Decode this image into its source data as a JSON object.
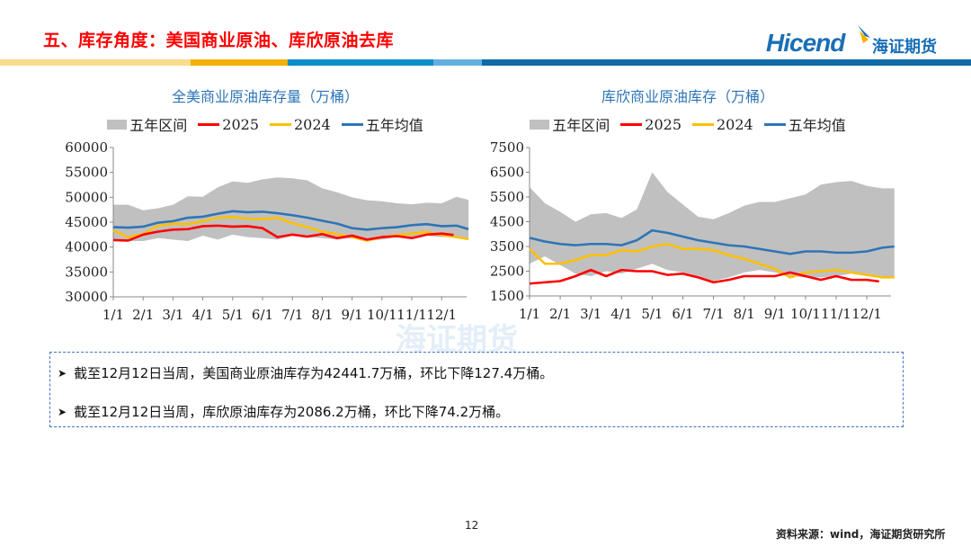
{
  "header": {
    "title": "五、库存角度：美国商业原油、库欣原油去库",
    "logo_text": "Hicend",
    "logo_cn": "海证期货"
  },
  "colors": {
    "title": "#ff0000",
    "band": "#c0c0c0",
    "series_2025": "#ff0000",
    "series_2024": "#ffc000",
    "series_avg": "#2e75b6",
    "header_bars": [
      "#fbdc8c",
      "#f5b000",
      "#0a8fcb",
      "#62b0df",
      "#0f6aa6"
    ]
  },
  "watermark": "海证期货",
  "chart_data": [
    {
      "type": "area",
      "title": "全美商业原油库存量（万桶）",
      "legend": [
        "五年区间",
        "2025",
        "2024",
        "五年均值"
      ],
      "legend_placement": "top",
      "x_unit": "month",
      "x_ticks": [
        "1/1",
        "2/1",
        "3/1",
        "4/1",
        "5/1",
        "6/1",
        "7/1",
        "8/1",
        "9/1",
        "10/1",
        "11/1",
        "12/1"
      ],
      "y_ticks": [
        30000,
        35000,
        40000,
        45000,
        50000,
        55000,
        60000
      ],
      "y_tick_labels": [
        "30000",
        "35000",
        "40000",
        "45000",
        "50000",
        "55000",
        "60000"
      ],
      "ylim": [
        30000,
        60000
      ],
      "grid": false,
      "x": [
        1,
        1.5,
        2,
        2.5,
        3,
        3.5,
        4,
        4.5,
        5,
        5.5,
        6,
        6.5,
        7,
        7.5,
        8,
        8.5,
        9,
        9.5,
        10,
        10.5,
        11,
        11.5,
        12,
        12.5,
        12.9
      ],
      "band": {
        "name": "五年区间",
        "upper": [
          48500,
          48500,
          47400,
          47800,
          48500,
          50200,
          50100,
          52000,
          53200,
          52900,
          53600,
          54000,
          53800,
          53400,
          51800,
          51000,
          50000,
          49400,
          49200,
          48800,
          48600,
          48900,
          48800,
          50100,
          49500
        ],
        "lower": [
          41500,
          41200,
          41200,
          41800,
          41500,
          41200,
          42300,
          41500,
          42500,
          42000,
          41800,
          41500,
          42300,
          42000,
          41800,
          41500,
          41800,
          41300,
          41500,
          42000,
          42000,
          42300,
          42000,
          42200,
          41500
        ]
      },
      "series": [
        {
          "name": "五年均值",
          "x": [
            1,
            1.5,
            2,
            2.5,
            3,
            3.5,
            4,
            4.5,
            5,
            5.5,
            6,
            6.5,
            7,
            7.5,
            8,
            8.5,
            9,
            9.5,
            10,
            10.5,
            11,
            11.5,
            12,
            12.5,
            12.9
          ],
          "values": [
            44000,
            43900,
            44100,
            44900,
            45200,
            45900,
            46100,
            46700,
            47200,
            47000,
            47100,
            46800,
            46400,
            45900,
            45300,
            44700,
            43800,
            43500,
            43800,
            44000,
            44400,
            44600,
            44200,
            44300,
            43600
          ]
        },
        {
          "name": "2024",
          "x": [
            1,
            1.5,
            2,
            2.5,
            3,
            3.5,
            4,
            4.5,
            5,
            5.5,
            6,
            6.5,
            7,
            7.5,
            8,
            8.5,
            9,
            9.5,
            10,
            10.5,
            11,
            11.5,
            12,
            12.5,
            12.9
          ],
          "values": [
            43300,
            42000,
            42600,
            44300,
            44700,
            44600,
            45200,
            45900,
            46000,
            45700,
            45600,
            45900,
            44800,
            44000,
            43100,
            42600,
            42000,
            41300,
            42000,
            42400,
            42700,
            43000,
            42400,
            42000,
            41600
          ]
        },
        {
          "name": "2025",
          "x": [
            1,
            1.5,
            2,
            2.5,
            3,
            3.5,
            4,
            4.5,
            5,
            5.5,
            6,
            6.5,
            7,
            7.5,
            8,
            8.5,
            9,
            9.5,
            10,
            10.5,
            11,
            11.5,
            12,
            12.4
          ],
          "values": [
            41400,
            41300,
            42500,
            43100,
            43500,
            43600,
            44200,
            44300,
            44100,
            44200,
            43800,
            42000,
            42500,
            42100,
            42600,
            41800,
            42300,
            41500,
            42000,
            42200,
            41800,
            42500,
            42700,
            42441.7
          ]
        }
      ]
    },
    {
      "type": "area",
      "title": "库欣商业原油库存（万桶）",
      "legend": [
        "五年区间",
        "2025",
        "2024",
        "五年均值"
      ],
      "legend_placement": "top",
      "x_unit": "month",
      "x_ticks": [
        "1/1",
        "2/1",
        "3/1",
        "4/1",
        "5/1",
        "6/1",
        "7/1",
        "8/1",
        "9/1",
        "10/1",
        "11/1",
        "12/1"
      ],
      "y_ticks": [
        1500,
        2500,
        3500,
        4500,
        5500,
        6500,
        7500
      ],
      "y_tick_labels": [
        "1500",
        "2500",
        "3500",
        "4500",
        "5500",
        "6500",
        "7500"
      ],
      "ylim": [
        1500,
        7500
      ],
      "grid": false,
      "x": [
        1,
        1.5,
        2,
        2.5,
        3,
        3.5,
        4,
        4.5,
        5,
        5.5,
        6,
        6.5,
        7,
        7.5,
        8,
        8.5,
        9,
        9.5,
        10,
        10.5,
        11,
        11.5,
        12,
        12.5,
        12.9
      ],
      "band": {
        "name": "五年区间",
        "upper": [
          5900,
          5250,
          4900,
          4500,
          4800,
          4850,
          4650,
          5000,
          6500,
          5700,
          5200,
          4700,
          4600,
          4850,
          5150,
          5300,
          5300,
          5450,
          5600,
          6000,
          6100,
          6150,
          5950,
          5850,
          5850
        ],
        "lower": [
          2800,
          3100,
          2750,
          2400,
          2300,
          2500,
          2400,
          2600,
          2800,
          2550,
          2450,
          2300,
          2100,
          2250,
          2450,
          2550,
          2450,
          2300,
          2250,
          2250,
          2300,
          2400,
          2300,
          2250,
          2250
        ]
      },
      "series": [
        {
          "name": "五年均值",
          "x": [
            1,
            1.5,
            2,
            2.5,
            3,
            3.5,
            4,
            4.5,
            5,
            5.5,
            6,
            6.5,
            7,
            7.5,
            8,
            8.5,
            9,
            9.5,
            10,
            10.5,
            11,
            11.5,
            12,
            12.5,
            12.9
          ],
          "values": [
            3850,
            3700,
            3600,
            3550,
            3600,
            3600,
            3550,
            3750,
            4150,
            4050,
            3900,
            3750,
            3650,
            3550,
            3500,
            3400,
            3300,
            3200,
            3300,
            3300,
            3250,
            3250,
            3300,
            3450,
            3500
          ]
        },
        {
          "name": "2024",
          "x": [
            1,
            1.5,
            2,
            2.5,
            3,
            3.5,
            4,
            4.5,
            5,
            5.5,
            6,
            6.5,
            7,
            7.5,
            8,
            8.5,
            9,
            9.5,
            10,
            10.5,
            11,
            11.5,
            12,
            12.5,
            12.9
          ],
          "values": [
            3400,
            2800,
            2800,
            2950,
            3150,
            3150,
            3350,
            3300,
            3500,
            3600,
            3400,
            3400,
            3350,
            3150,
            3000,
            2800,
            2600,
            2250,
            2450,
            2500,
            2550,
            2450,
            2350,
            2250,
            2250
          ]
        },
        {
          "name": "2025",
          "x": [
            1,
            1.5,
            2,
            2.5,
            3,
            3.5,
            4,
            4.5,
            5,
            5.5,
            6,
            6.5,
            7,
            7.5,
            8,
            8.5,
            9,
            9.5,
            10,
            10.5,
            11,
            11.5,
            12,
            12.4
          ],
          "values": [
            2000,
            2050,
            2100,
            2300,
            2550,
            2300,
            2550,
            2500,
            2500,
            2350,
            2400,
            2250,
            2050,
            2150,
            2300,
            2300,
            2300,
            2450,
            2300,
            2150,
            2300,
            2150,
            2150,
            2086.2
          ]
        }
      ]
    }
  ],
  "notes": [
    "截至12月12日当周，美国商业原油库存为42441.7万桶，环比下降127.4万桶。",
    "截至12月12日当周，库欣原油库存为2086.2万桶，环比下降74.2万桶。"
  ],
  "footer": {
    "page_number": "12",
    "source": "资料来源：wind，海证期货研究所"
  }
}
